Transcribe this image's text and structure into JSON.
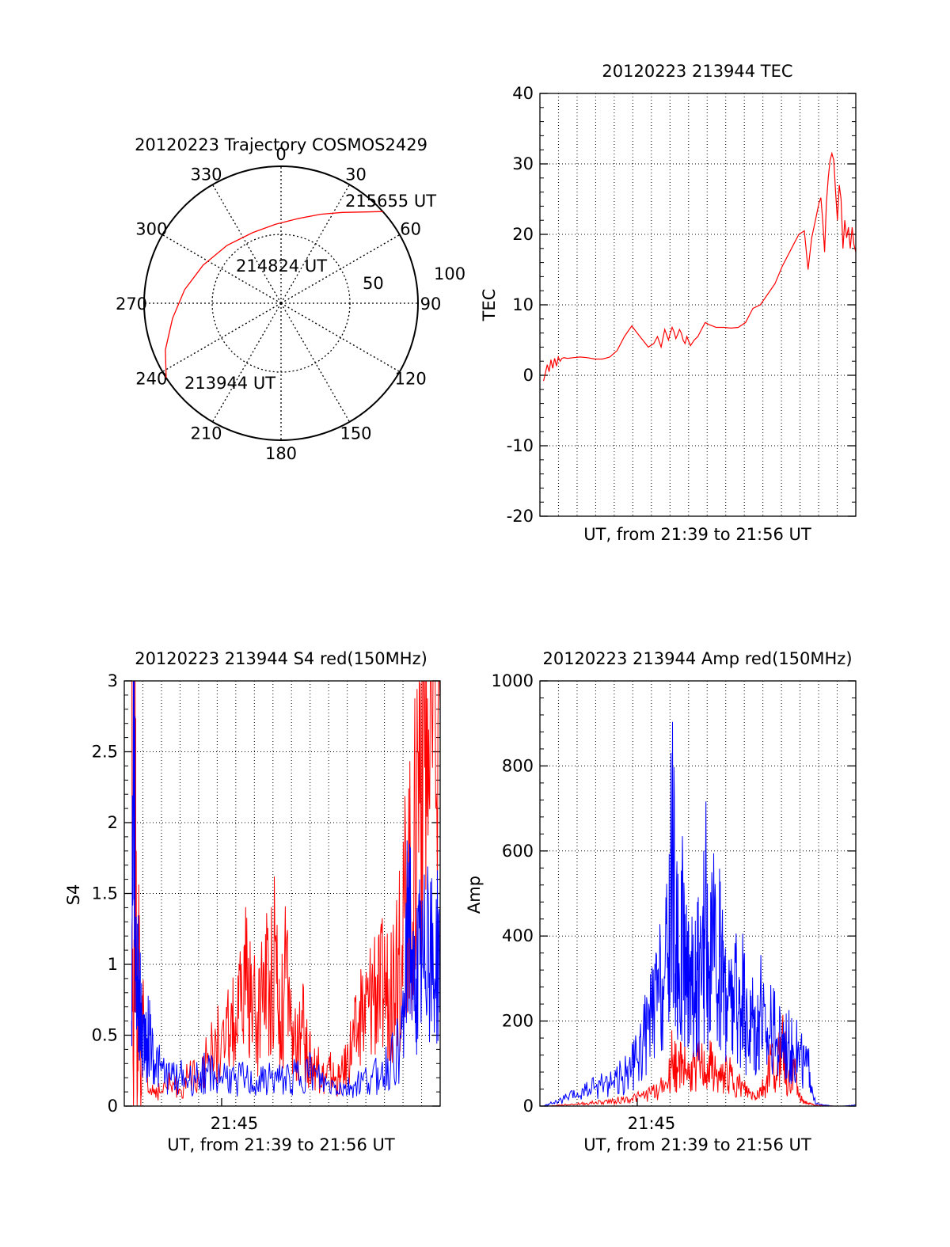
{
  "colors": {
    "red": "#ff0000",
    "blue": "#0000ff",
    "grid": "#000000"
  },
  "chart_data": [
    {
      "type": "polar",
      "title": "20120223 Trajectory COSMOS2429",
      "azimuth_labels": [
        "0",
        "30",
        "60",
        "90",
        "120",
        "150",
        "180",
        "210",
        "240",
        "270",
        "300",
        "330"
      ],
      "elevation_ring_labels": [
        "50",
        "100"
      ],
      "annotations": [
        "213944 UT",
        "214824 UT",
        "215655 UT"
      ],
      "trajectory": [
        {
          "az": 237,
          "zen": 90
        },
        {
          "az": 248,
          "zen": 82
        },
        {
          "az": 262,
          "zen": 72
        },
        {
          "az": 278,
          "zen": 64
        },
        {
          "az": 296,
          "zen": 57
        },
        {
          "az": 317,
          "zen": 52
        },
        {
          "az": 338,
          "zen": 50
        },
        {
          "az": 356,
          "zen": 52
        },
        {
          "az": 12,
          "zen": 57
        },
        {
          "az": 24,
          "zen": 64
        },
        {
          "az": 34,
          "zen": 72
        },
        {
          "az": 43,
          "zen": 82
        },
        {
          "az": 48,
          "zen": 90
        }
      ]
    },
    {
      "type": "line",
      "title": "20120223 213944 TEC",
      "xlabel": "UT, from 21:39 to 21:56 UT",
      "ylabel": "TEC",
      "xlim": [
        0,
        17.2
      ],
      "ylim": [
        -20,
        40
      ],
      "yticks": [
        "-20",
        "-10",
        "0",
        "10",
        "20",
        "30",
        "40"
      ],
      "series": [
        {
          "x": [
            0.2,
            0.4,
            0.5,
            0.6,
            0.7,
            0.8,
            0.9,
            1.0,
            1.1,
            1.2,
            1.3,
            1.5,
            1.8,
            2.2,
            2.6,
            3.0,
            3.4,
            3.8,
            4.2,
            4.6,
            5.0,
            5.3,
            5.6,
            5.9,
            6.2,
            6.4,
            6.6,
            6.8,
            7.0,
            7.1,
            7.2,
            7.3,
            7.4,
            7.5,
            7.6,
            7.7,
            7.8,
            7.9,
            8.0,
            8.2,
            8.4,
            8.6,
            8.8,
            9.0,
            9.2,
            9.4,
            9.6,
            10.0,
            10.4,
            10.8,
            11.2,
            11.6,
            12.0,
            12.4,
            12.8,
            13.2,
            13.5,
            13.8,
            14.1,
            14.4,
            14.6,
            14.8,
            15.0,
            15.2,
            15.3,
            15.4,
            15.5,
            15.6,
            15.7,
            15.8,
            15.9,
            16.0,
            16.1,
            16.2,
            16.3,
            16.4,
            16.5,
            16.6,
            16.7,
            16.8,
            16.9,
            17.0,
            17.1,
            17.2
          ],
          "y": [
            -0.8,
            1.5,
            0.5,
            2.2,
            1.0,
            2.4,
            1.3,
            2.6,
            2.0,
            2.4,
            2.5,
            2.4,
            2.5,
            2.6,
            2.5,
            2.3,
            2.3,
            2.6,
            3.5,
            5.5,
            7.0,
            6.0,
            5.0,
            4.0,
            4.5,
            5.5,
            4.0,
            6.5,
            5.0,
            6.0,
            6.8,
            6.2,
            5.2,
            5.8,
            6.5,
            6.0,
            5.0,
            4.5,
            5.5,
            4.2,
            5.0,
            5.5,
            6.5,
            7.5,
            7.2,
            7.0,
            6.8,
            6.8,
            6.7,
            6.8,
            7.5,
            9.5,
            10.0,
            11.5,
            13.0,
            15.5,
            17.0,
            18.5,
            20.0,
            20.5,
            15.0,
            19.5,
            22.0,
            24.5,
            25.2,
            22.0,
            17.5,
            24.5,
            28.0,
            30.5,
            31.5,
            30.5,
            26.0,
            22.0,
            27.0,
            25.0,
            18.0,
            22.0,
            19.5,
            21.0,
            18.0,
            21.0,
            18.5,
            17.5
          ]
        }
      ]
    },
    {
      "type": "line",
      "title": "20120223 213944 S4 red(150MHz)",
      "xlabel": "UT, from 21:39 to 21:56 UT",
      "ylabel": "S4",
      "xlim": [
        0,
        17.2
      ],
      "ylim": [
        0,
        3
      ],
      "xticks": [
        {
          "value": 5.3,
          "label": "21:45"
        }
      ],
      "yticks": [
        "0",
        "0.5",
        "1",
        "1.5",
        "2",
        "2.5",
        "3"
      ],
      "series": [
        {
          "x": [
            0.4,
            0.5,
            0.6,
            0.7,
            0.8,
            0.9,
            1.0,
            1.3,
            1.6,
            2.0,
            2.5,
            3.0,
            3.5,
            4.0,
            4.5,
            5.0,
            5.5,
            5.8,
            6.1,
            6.4,
            6.7,
            7.0,
            7.3,
            7.6,
            7.9,
            8.2,
            8.5,
            8.8,
            9.1,
            9.4,
            9.7,
            10.0,
            10.3,
            10.6,
            10.9,
            11.2,
            11.5,
            11.8,
            12.1,
            12.4,
            12.7,
            13.0,
            13.3,
            13.6,
            13.9,
            14.2,
            14.5,
            14.8,
            15.1,
            15.4,
            15.7,
            16.0,
            16.3,
            16.6,
            16.9,
            17.2
          ],
          "y": [
            3.0,
            0.0,
            2.4,
            0.0,
            1.2,
            0.0,
            0.6,
            0.1,
            0.12,
            0.1,
            0.15,
            0.12,
            0.2,
            0.25,
            0.3,
            0.45,
            0.4,
            0.6,
            0.5,
            0.75,
            0.9,
            0.7,
            0.55,
            1.0,
            0.8,
            1.2,
            0.6,
            0.9,
            0.5,
            0.4,
            0.55,
            0.35,
            0.3,
            0.25,
            0.2,
            0.25,
            0.18,
            0.2,
            0.3,
            0.45,
            0.5,
            0.65,
            0.7,
            0.9,
            0.75,
            0.9,
            0.7,
            1.2,
            0.9,
            1.8,
            1.3,
            2.5,
            3.0,
            2.2,
            3.0,
            2.8
          ]
        },
        {
          "x": [
            0.4,
            0.5,
            0.6,
            0.7,
            0.8,
            0.9,
            1.0,
            1.2,
            1.4,
            1.7,
            2.0,
            2.5,
            3.0,
            3.5,
            4.0,
            4.5,
            5.0,
            5.5,
            6.0,
            6.5,
            7.0,
            7.5,
            8.0,
            8.5,
            9.0,
            9.5,
            10.0,
            10.5,
            11.0,
            11.5,
            12.0,
            12.5,
            13.0,
            13.5,
            14.0,
            14.5,
            15.0,
            15.3,
            15.5,
            15.7,
            15.9,
            16.1,
            16.3,
            16.5,
            16.7,
            16.9,
            17.2
          ],
          "y": [
            0.6,
            3.0,
            1.2,
            0.9,
            0.8,
            0.6,
            0.5,
            0.45,
            0.5,
            0.3,
            0.25,
            0.2,
            0.22,
            0.18,
            0.2,
            0.25,
            0.2,
            0.22,
            0.18,
            0.2,
            0.15,
            0.17,
            0.2,
            0.18,
            0.2,
            0.22,
            0.25,
            0.2,
            0.15,
            0.15,
            0.12,
            0.15,
            0.18,
            0.2,
            0.25,
            0.3,
            0.45,
            0.7,
            1.6,
            0.75,
            0.9,
            1.0,
            0.9,
            1.4,
            1.0,
            0.9,
            1.2
          ]
        }
      ]
    },
    {
      "type": "line",
      "title": "20120223 213944 Amp red(150MHz)",
      "xlabel": "UT, from 21:39 to 21:56 UT",
      "ylabel": "Amp",
      "xlim": [
        0,
        17.2
      ],
      "ylim": [
        0,
        1000
      ],
      "xticks": [
        {
          "value": 5.3,
          "label": "21:45"
        }
      ],
      "yticks": [
        "0",
        "200",
        "400",
        "600",
        "800",
        "1000"
      ],
      "series": [
        {
          "x": [
            0.5,
            1.0,
            1.5,
            2.0,
            2.5,
            3.0,
            3.5,
            4.0,
            4.5,
            5.0,
            5.5,
            6.0,
            6.5,
            7.0,
            7.2,
            7.5,
            7.8,
            8.1,
            8.4,
            8.7,
            9.0,
            9.3,
            9.6,
            9.9,
            10.2,
            10.5,
            10.8,
            11.1,
            11.4,
            11.7,
            12.0,
            12.3,
            12.6,
            12.9,
            13.2,
            13.5,
            13.8,
            14.1,
            14.4,
            14.7,
            15.0,
            15.5,
            16.0,
            16.5,
            17.2
          ],
          "y": [
            0,
            2,
            3,
            5,
            6,
            8,
            10,
            12,
            15,
            18,
            22,
            30,
            40,
            60,
            120,
            80,
            110,
            70,
            90,
            100,
            80,
            95,
            70,
            60,
            85,
            60,
            50,
            40,
            30,
            25,
            35,
            50,
            120,
            60,
            190,
            40,
            110,
            20,
            10,
            5,
            2,
            1,
            0,
            0,
            0
          ]
        },
        {
          "x": [
            0.2,
            0.5,
            1.0,
            1.5,
            2.0,
            2.5,
            3.0,
            3.5,
            4.0,
            4.5,
            5.0,
            5.3,
            5.6,
            5.9,
            6.2,
            6.5,
            6.8,
            7.0,
            7.2,
            7.4,
            7.6,
            7.8,
            8.0,
            8.2,
            8.4,
            8.6,
            8.8,
            9.0,
            9.2,
            9.4,
            9.6,
            9.8,
            10.0,
            10.2,
            10.4,
            10.6,
            10.8,
            11.0,
            11.2,
            11.4,
            11.6,
            11.8,
            12.0,
            12.3,
            12.6,
            12.9,
            13.2,
            13.5,
            13.8,
            14.1,
            14.4,
            14.7,
            15.0,
            15.5,
            16.0,
            16.5,
            17.2
          ],
          "y": [
            0,
            5,
            10,
            20,
            25,
            35,
            45,
            55,
            60,
            70,
            90,
            110,
            150,
            180,
            220,
            260,
            300,
            350,
            600,
            380,
            300,
            420,
            280,
            350,
            250,
            320,
            260,
            480,
            300,
            420,
            280,
            350,
            300,
            260,
            230,
            280,
            220,
            260,
            200,
            180,
            220,
            170,
            260,
            150,
            200,
            140,
            170,
            150,
            130,
            120,
            100,
            80,
            5,
            2,
            0,
            0,
            2
          ]
        }
      ]
    }
  ]
}
